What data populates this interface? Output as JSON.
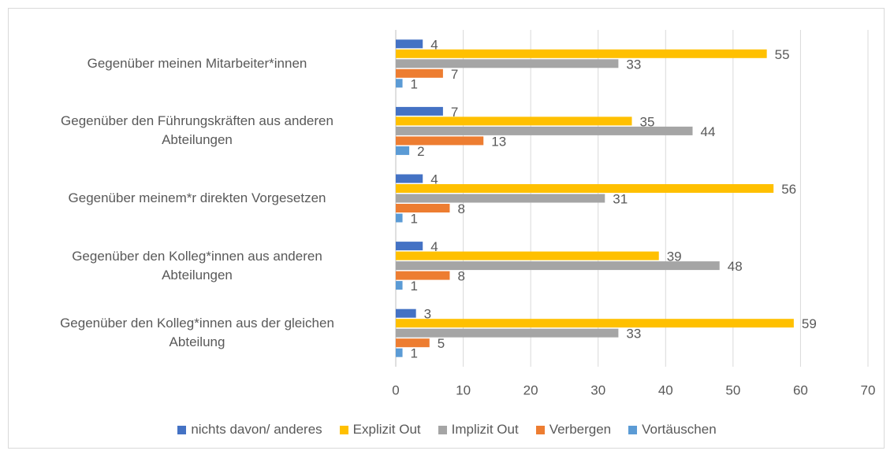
{
  "chart_data": {
    "type": "bar",
    "orientation": "horizontal",
    "categories": [
      "Gegenüber meinen Mitarbeiter*innen",
      "Gegenüber den Führungskräften aus anderen\nAbteilungen",
      "Gegenüber meinem*r direkten Vorgesetzen",
      "Gegenüber den Kolleg*innen aus anderen\nAbteilungen",
      "Gegenüber den Kolleg*innen aus der gleichen\nAbteilung"
    ],
    "series": [
      {
        "name": "nichts davon/ anderes",
        "color": "#4472c4",
        "values": [
          4,
          7,
          4,
          4,
          3
        ]
      },
      {
        "name": "Explizit Out",
        "color": "#ffc000",
        "values": [
          55,
          35,
          56,
          39,
          59
        ]
      },
      {
        "name": "Implizit Out",
        "color": "#a5a5a5",
        "values": [
          33,
          44,
          31,
          48,
          33
        ]
      },
      {
        "name": "Verbergen",
        "color": "#ed7d31",
        "values": [
          7,
          13,
          8,
          8,
          5
        ]
      },
      {
        "name": "Vortäuschen",
        "color": "#5b9bd5",
        "values": [
          1,
          2,
          1,
          1,
          1
        ]
      }
    ],
    "xlim": [
      0,
      70
    ],
    "xticks": [
      0,
      10,
      20,
      30,
      40,
      50,
      60,
      70
    ],
    "grid": true,
    "legend": "bottom",
    "data_labels": true
  }
}
